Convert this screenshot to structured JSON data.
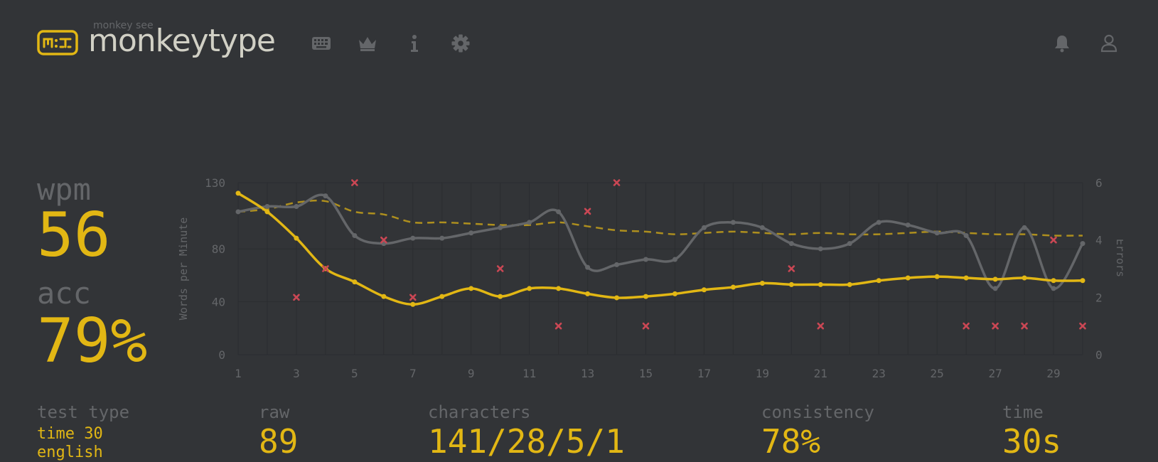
{
  "header": {
    "brand_small": "monkey see",
    "brand": "monkeytype",
    "logo_text": "m:t",
    "nav_icons": [
      "keyboard-icon",
      "crown-icon",
      "info-icon",
      "gear-icon"
    ],
    "right_icons": [
      "bell-icon",
      "user-icon"
    ]
  },
  "stats": {
    "wpm_label": "wpm",
    "wpm_value": "56",
    "acc_label": "acc",
    "acc_value": "79%",
    "test_type_label": "test type",
    "test_type_mode": "time 30",
    "test_type_lang": "english",
    "raw_label": "raw",
    "raw_value": "89",
    "characters_label": "characters",
    "characters_value": "141/28/5/1",
    "consistency_label": "consistency",
    "consistency_value": "78%",
    "time_label": "time",
    "time_value": "30s"
  },
  "colors": {
    "background": "#323437",
    "main": "#e2b714",
    "sub": "#646669",
    "text": "#d1d0c5",
    "error": "#ca4754"
  },
  "chart_data": {
    "type": "line",
    "ylabel": "Words per Minute",
    "y2label": "Errors",
    "x": [
      1,
      2,
      3,
      4,
      5,
      6,
      7,
      8,
      9,
      10,
      11,
      12,
      13,
      14,
      15,
      16,
      17,
      18,
      19,
      20,
      21,
      22,
      23,
      24,
      25,
      26,
      27,
      28,
      29,
      30
    ],
    "xticks": [
      1,
      3,
      5,
      7,
      9,
      11,
      13,
      15,
      17,
      19,
      21,
      23,
      25,
      27,
      29
    ],
    "yticks": [
      0,
      40,
      80,
      130
    ],
    "y2ticks": [
      0,
      2,
      4,
      6
    ],
    "ylim": [
      0,
      130
    ],
    "y2lim": [
      0,
      6
    ],
    "grid": true,
    "series": [
      {
        "role": "wpm",
        "color": "#e2b714",
        "style": "solid",
        "values": [
          122,
          108,
          88,
          65,
          55,
          44,
          38,
          44,
          50,
          44,
          50,
          50,
          46,
          43,
          44,
          46,
          49,
          51,
          54,
          53,
          53,
          53,
          56,
          58,
          59,
          58,
          57,
          58,
          56,
          56
        ]
      },
      {
        "role": "raw",
        "color": "#646669",
        "style": "solid",
        "values": [
          108,
          112,
          112,
          120,
          90,
          84,
          88,
          88,
          92,
          96,
          100,
          108,
          66,
          68,
          72,
          72,
          96,
          100,
          96,
          84,
          80,
          84,
          100,
          98,
          92,
          90,
          50,
          96,
          50,
          84
        ]
      },
      {
        "role": "burst",
        "color": "#e2b714",
        "style": "dashed",
        "values": [
          108,
          110,
          115,
          116,
          108,
          106,
          100,
          100,
          99,
          98,
          98,
          100,
          97,
          94,
          93,
          91,
          92,
          93,
          92,
          91,
          92,
          91,
          91,
          92,
          93,
          92,
          91,
          91,
          90,
          90
        ]
      }
    ],
    "errors": {
      "x": [
        3,
        4,
        5,
        6,
        7,
        10,
        12,
        13,
        14,
        15,
        20,
        21,
        26,
        27,
        28,
        29,
        30
      ],
      "y": [
        2,
        3,
        6,
        4,
        2,
        3,
        1,
        5,
        6,
        1,
        3,
        1,
        1,
        1,
        1,
        4,
        1
      ]
    }
  }
}
